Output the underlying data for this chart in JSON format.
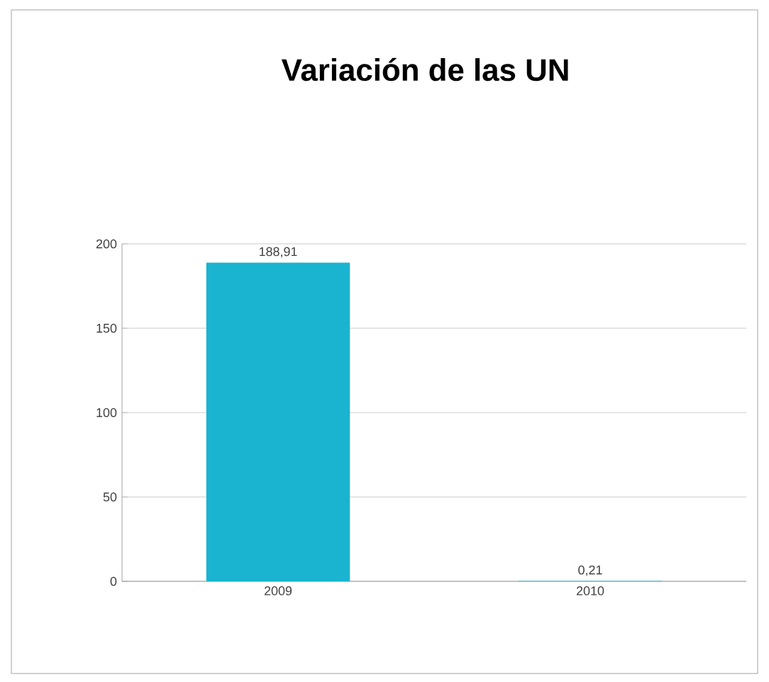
{
  "chart_data": {
    "type": "bar",
    "title": "Variación de las UN",
    "categories": [
      "2009",
      "2010"
    ],
    "values": [
      188.91,
      0.21
    ],
    "value_labels": [
      "188,91",
      "0,21"
    ],
    "color": "#1ab3d0",
    "ylim": [
      0,
      200
    ],
    "yticks": [
      0,
      50,
      100,
      150,
      200
    ],
    "grid": "y"
  }
}
